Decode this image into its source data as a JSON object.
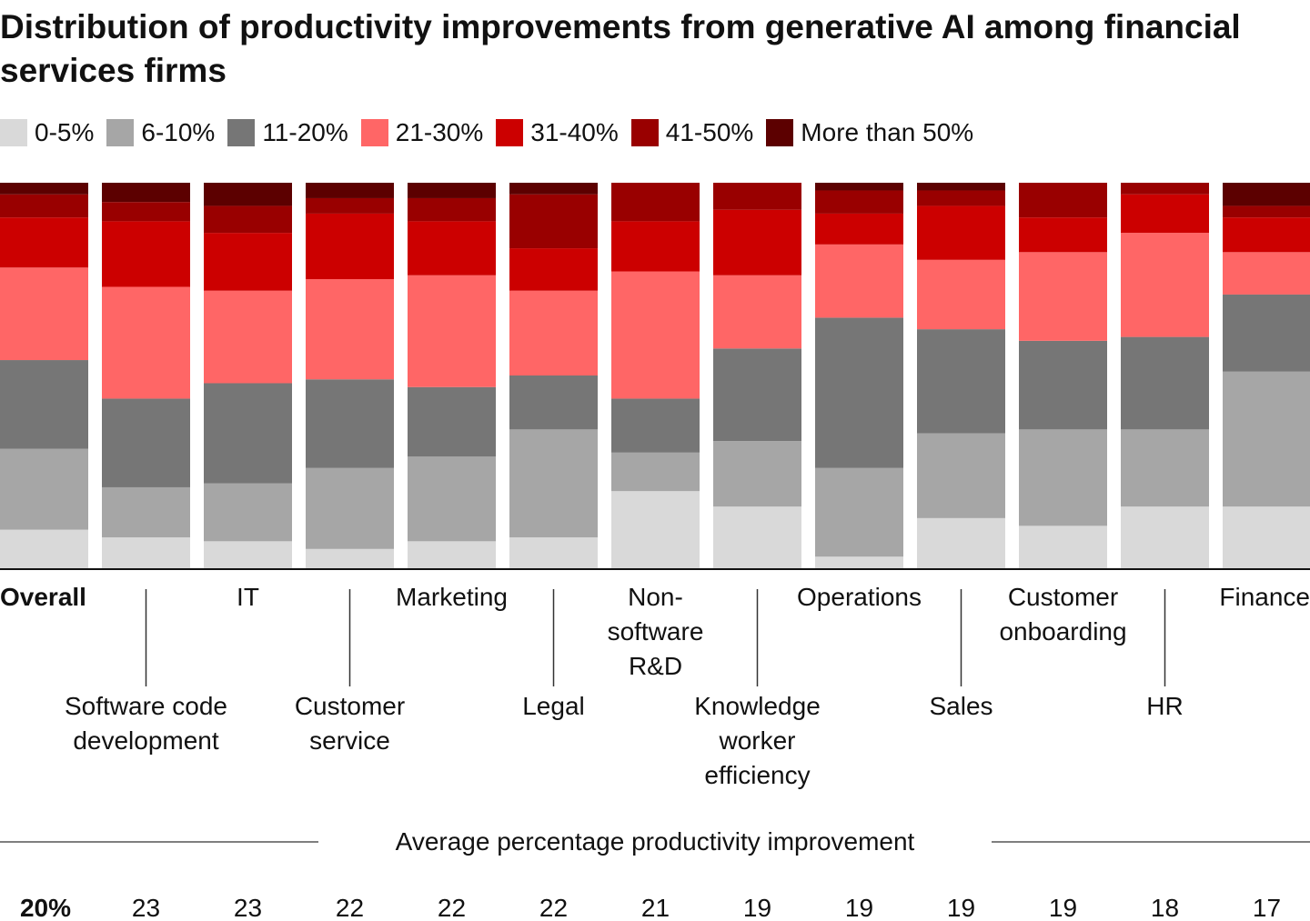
{
  "chart_data": {
    "type": "stacked_bar_100",
    "title": "Distribution of productivity improvements from generative AI among financial services firms",
    "categories": [
      "Overall",
      "Software code development",
      "IT",
      "Customer service",
      "Marketing",
      "Legal",
      "Non-software R&D",
      "Knowledge worker efficiency",
      "Operations",
      "Sales",
      "Customer onboarding",
      "HR",
      "Finance"
    ],
    "ylim": [
      0,
      100
    ],
    "series": [
      {
        "name": "0-5%",
        "color": "#d9d9d9",
        "values": [
          10,
          8,
          7,
          5,
          7,
          8,
          20,
          16,
          3,
          13,
          11,
          16,
          16
        ]
      },
      {
        "name": "6-10%",
        "color": "#a6a6a6",
        "values": [
          21,
          13,
          15,
          21,
          22,
          28,
          10,
          17,
          23,
          22,
          25,
          20,
          35
        ]
      },
      {
        "name": "11-20%",
        "color": "#767676",
        "values": [
          23,
          23,
          26,
          23,
          18,
          14,
          14,
          24,
          39,
          27,
          23,
          24,
          20
        ]
      },
      {
        "name": "21-30%",
        "color": "#ff6666",
        "values": [
          24,
          29,
          24,
          26,
          29,
          22,
          33,
          19,
          19,
          18,
          23,
          27,
          11
        ]
      },
      {
        "name": "31-40%",
        "color": "#cc0000",
        "values": [
          13,
          17,
          15,
          17,
          14,
          11,
          13,
          17,
          8,
          14,
          9,
          10,
          9
        ]
      },
      {
        "name": "41-50%",
        "color": "#990000",
        "values": [
          6,
          5,
          7,
          4,
          6,
          14,
          10,
          7,
          6,
          4,
          9,
          3,
          3
        ]
      },
      {
        "name": "More than 50%",
        "color": "#5c0000",
        "values": [
          3,
          5,
          6,
          4,
          4,
          3,
          0,
          0,
          2,
          2,
          0,
          0,
          6
        ]
      }
    ],
    "average_title": "Average percentage productivity improvement",
    "averages": {
      "values": [
        20,
        23,
        23,
        22,
        22,
        22,
        21,
        19,
        19,
        19,
        19,
        18,
        17
      ],
      "value_labels": [
        "20%",
        "23",
        "23",
        "22",
        "22",
        "22",
        "21",
        "19",
        "19",
        "19",
        "19",
        "18",
        "17"
      ]
    }
  }
}
